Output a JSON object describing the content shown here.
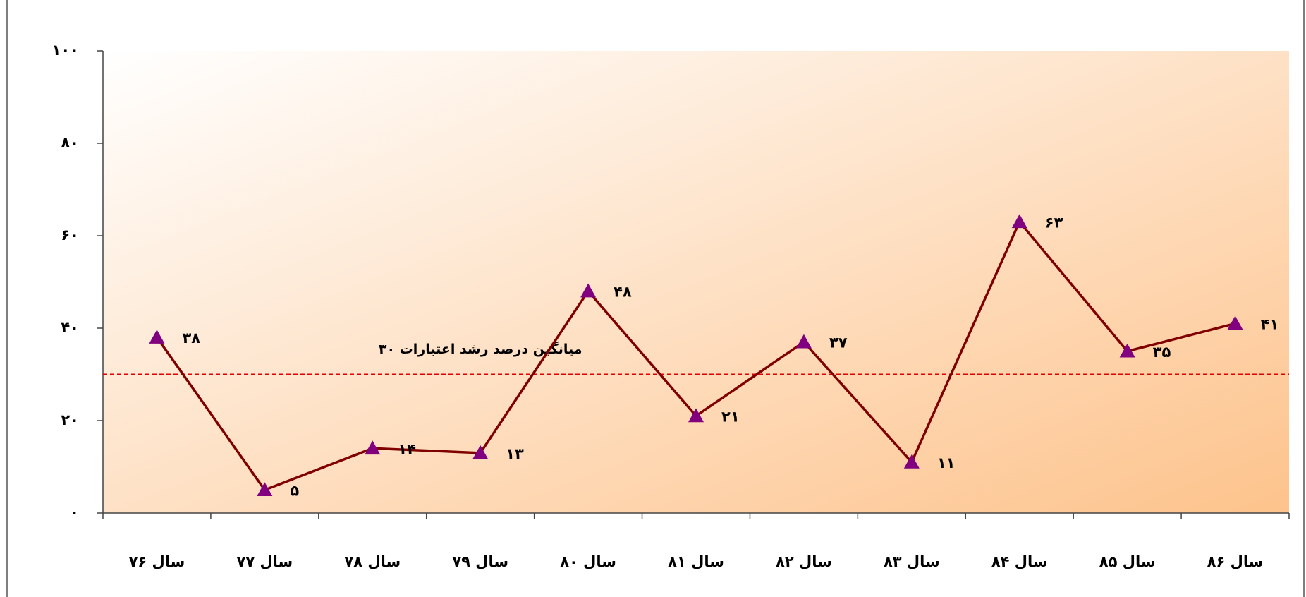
{
  "chart_data": {
    "type": "line",
    "categories": [
      "سال ۷۶",
      "سال ۷۷",
      "سال ۷۸",
      "سال ۷۹",
      "سال ۸۰",
      "سال ۸۱",
      "سال ۸۲",
      "سال ۸۳",
      "سال ۸۴",
      "سال ۸۵",
      "سال ۸۶"
    ],
    "values": [
      38,
      5,
      14,
      13,
      48,
      21,
      37,
      11,
      63,
      35,
      41
    ],
    "value_labels": [
      "۳۸",
      "۵",
      "۱۴",
      "۱۳",
      "۴۸",
      "۲۱",
      "۳۷",
      "۱۱",
      "۶۳",
      "۳۵",
      "۴۱"
    ],
    "line_color": "#800000",
    "marker_color": "#800080",
    "ylim": [
      0,
      100
    ],
    "yticks": [
      {
        "value": 0,
        "label": "۰"
      },
      {
        "value": 20,
        "label": "۲۰"
      },
      {
        "value": 40,
        "label": "۴۰"
      },
      {
        "value": 60,
        "label": "۶۰"
      },
      {
        "value": 80,
        "label": "۸۰"
      },
      {
        "value": 100,
        "label": "۱۰۰"
      }
    ],
    "reference_line": {
      "value": 30,
      "label": "میانگین درصد رشد اعتبارات ۳۰",
      "color": "#e00000"
    }
  }
}
